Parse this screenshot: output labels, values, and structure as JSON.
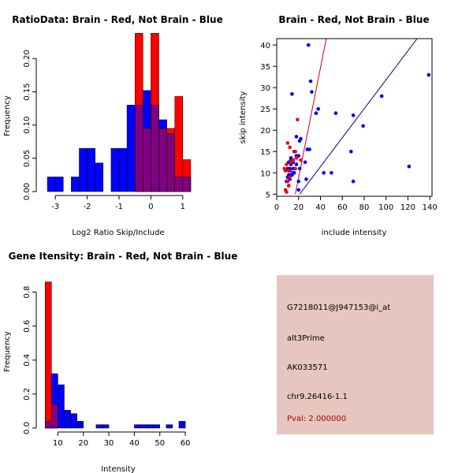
{
  "chart_data": [
    {
      "id": "ratio",
      "type": "histogram",
      "title": "RatioData: Brain - Red, Not Brain - Blue",
      "xlabel": "Log2 Ratio Skip/Include",
      "ylabel": "Frequency",
      "xlim": [
        -3.4,
        1.4
      ],
      "ylim": [
        0,
        0.23
      ],
      "xticks": [
        -3,
        -2,
        -1,
        0,
        1
      ],
      "yticks": [
        0.0,
        0.05,
        0.1,
        0.15,
        0.2
      ],
      "ytick_labels": [
        "0.00",
        "0.05",
        "0.10",
        "0.15",
        "0.20"
      ],
      "bin_width": 0.25,
      "series": [
        {
          "name": "Not Brain",
          "color": "#0000ff",
          "bins": [
            [
              -3.25,
              0.022
            ],
            [
              -3.0,
              0.022
            ],
            [
              -2.5,
              0.022
            ],
            [
              -2.25,
              0.065
            ],
            [
              -2.0,
              0.065
            ],
            [
              -1.75,
              0.043
            ],
            [
              -1.25,
              0.065
            ],
            [
              -1.0,
              0.065
            ],
            [
              -0.75,
              0.13
            ],
            [
              -0.5,
              0.13
            ],
            [
              -0.25,
              0.152
            ],
            [
              0.0,
              0.13
            ],
            [
              0.25,
              0.108
            ],
            [
              0.5,
              0.087
            ],
            [
              0.75,
              0.022
            ],
            [
              1.0,
              0.022
            ]
          ]
        },
        {
          "name": "Brain",
          "color": "#ff0000",
          "bins": [
            [
              -0.5,
              0.238
            ],
            [
              -0.25,
              0.095
            ],
            [
              0.0,
              0.238
            ],
            [
              0.25,
              0.095
            ],
            [
              0.5,
              0.095
            ],
            [
              0.75,
              0.143
            ],
            [
              1.0,
              0.048
            ]
          ]
        }
      ]
    },
    {
      "id": "scatter",
      "type": "scatter",
      "title": "Brain - Red, Not Brain - Blue",
      "xlabel": "include intensity",
      "ylabel": "skip intensity",
      "xlim": [
        0,
        142
      ],
      "ylim": [
        4.5,
        41.5
      ],
      "xticks": [
        0,
        20,
        40,
        60,
        80,
        100,
        120,
        140
      ],
      "yticks": [
        5,
        10,
        15,
        20,
        25,
        30,
        35,
        40
      ],
      "series": [
        {
          "name": "Not Brain",
          "color": "#0000ff",
          "points": [
            [
              29,
              40
            ],
            [
              14,
              28.5
            ],
            [
              31,
              31.5
            ],
            [
              32,
              29
            ],
            [
              36,
              24
            ],
            [
              38,
              25
            ],
            [
              54,
              24
            ],
            [
              70,
              23.5
            ],
            [
              79,
              21
            ],
            [
              96,
              28
            ],
            [
              139,
              33
            ],
            [
              18,
              18.5
            ],
            [
              22,
              18
            ],
            [
              21,
              17.5
            ],
            [
              28,
              15.5
            ],
            [
              30,
              15.5
            ],
            [
              16,
              15
            ],
            [
              20,
              14
            ],
            [
              13,
              13
            ],
            [
              11,
              12.5
            ],
            [
              26,
              12.5
            ],
            [
              18,
              12
            ],
            [
              10,
              11
            ],
            [
              15,
              11
            ],
            [
              21,
              11
            ],
            [
              12,
              10.5
            ],
            [
              16,
              10
            ],
            [
              13,
              9.5
            ],
            [
              14,
              9.5
            ],
            [
              10,
              9
            ],
            [
              9,
              8
            ],
            [
              20,
              8
            ],
            [
              27,
              8.5
            ],
            [
              43,
              10
            ],
            [
              50,
              10
            ],
            [
              68,
              15
            ],
            [
              70,
              8
            ],
            [
              121,
              11.5
            ],
            [
              20,
              6
            ],
            [
              12,
              8.5
            ],
            [
              15,
              10
            ],
            [
              13,
              12
            ],
            [
              11,
              9.5
            ],
            [
              17,
              11
            ],
            [
              12,
              11
            ],
            [
              13,
              13.5
            ],
            [
              15,
              12.5
            ],
            [
              11,
              7
            ],
            [
              18,
              14
            ]
          ]
        },
        {
          "name": "Brain",
          "color": "#ff0000",
          "points": [
            [
              19,
              22.5
            ],
            [
              10,
              17
            ],
            [
              12,
              16
            ],
            [
              17,
              15
            ],
            [
              18,
              13.5
            ],
            [
              22,
              13
            ],
            [
              9,
              12
            ],
            [
              7,
              11
            ],
            [
              11,
              10.5
            ],
            [
              8,
              10.5
            ],
            [
              12,
              9
            ],
            [
              10,
              8
            ],
            [
              11,
              7
            ],
            [
              8,
              6
            ],
            [
              9,
              5.5
            ],
            [
              13,
              12.5
            ],
            [
              15,
              13
            ],
            [
              17,
              11
            ]
          ]
        }
      ],
      "lines": [
        {
          "color": "#cc0000",
          "from": [
            17,
            5
          ],
          "to": [
            45.3,
            41.5
          ]
        },
        {
          "color": "#000080",
          "from": [
            21,
            5
          ],
          "to": [
            128.4,
            41.5
          ]
        }
      ]
    },
    {
      "id": "intensity",
      "type": "histogram",
      "title": "Gene Itensity: Brain - Red, Not Brain - Blue",
      "xlabel": "Intensity",
      "ylabel": "Frequency",
      "xlim": [
        4,
        64
      ],
      "ylim": [
        0,
        0.9
      ],
      "xticks": [
        10,
        20,
        30,
        40,
        50,
        60
      ],
      "yticks": [
        0.0,
        0.2,
        0.4,
        0.6,
        0.8
      ],
      "ytick_labels": [
        "0.0",
        "0.2",
        "0.4",
        "0.6",
        "0.8"
      ],
      "bin_width": 2.5,
      "series": [
        {
          "name": "Not Brain",
          "color": "#0000ff",
          "bins": [
            [
              5,
              0.04
            ],
            [
              7.5,
              0.32
            ],
            [
              10,
              0.255
            ],
            [
              12.5,
              0.105
            ],
            [
              15,
              0.085
            ],
            [
              17.5,
              0.04
            ],
            [
              25,
              0.02
            ],
            [
              27.5,
              0.02
            ],
            [
              40,
              0.02
            ],
            [
              42.5,
              0.02
            ],
            [
              45,
              0.02
            ],
            [
              47.5,
              0.02
            ],
            [
              52.5,
              0.02
            ],
            [
              57.5,
              0.04
            ]
          ]
        },
        {
          "name": "Brain",
          "color": "#ff0000",
          "bins": [
            [
              5,
              0.86
            ],
            [
              7.5,
              0.14
            ]
          ]
        }
      ]
    }
  ],
  "info_panel": {
    "probe_id": "G7218011@J947153@i_at",
    "event_type": "alt3Prime",
    "accession": "AK033571",
    "location": "chr9.26416-1.1",
    "pval": "Pval: 2.000000"
  }
}
